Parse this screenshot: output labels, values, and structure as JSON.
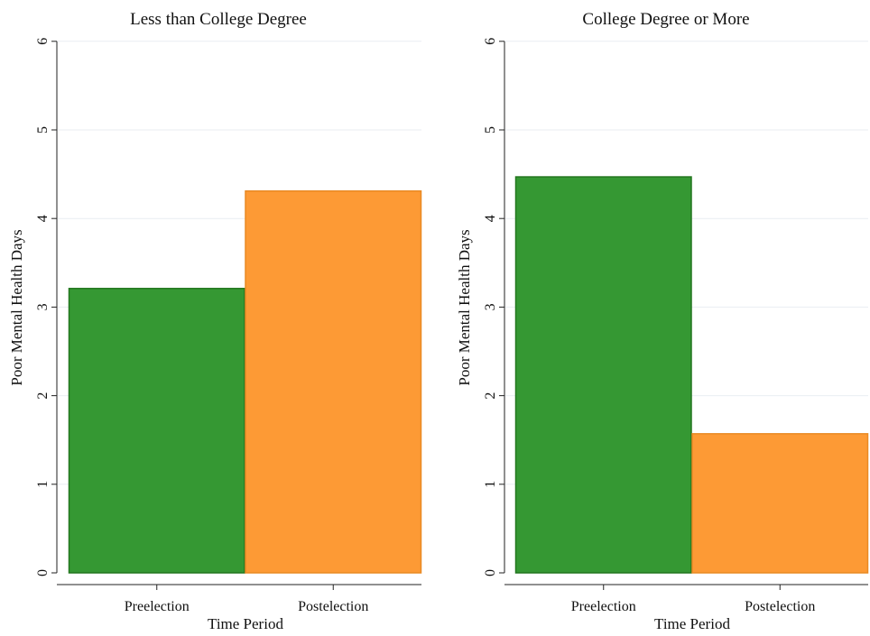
{
  "chart_data": [
    {
      "type": "bar",
      "title": "Less than College Degree",
      "xlabel": "Time Period",
      "ylabel": "Poor Mental Health Days",
      "categories": [
        "Preelection",
        "Postelection"
      ],
      "values": [
        3.21,
        4.31
      ],
      "colors": [
        "#359833",
        "#fd9a35"
      ],
      "ylim": [
        0,
        6
      ],
      "yticks": [
        0,
        1,
        2,
        3,
        4,
        5,
        6
      ],
      "grid": true,
      "legend": "none"
    },
    {
      "type": "bar",
      "title": "College Degree or More",
      "xlabel": "Time Period",
      "ylabel": "Poor Mental Health Days",
      "categories": [
        "Preelection",
        "Postelection"
      ],
      "values": [
        4.47,
        1.57
      ],
      "colors": [
        "#359833",
        "#fd9a35"
      ],
      "ylim": [
        0,
        6
      ],
      "yticks": [
        0,
        1,
        2,
        3,
        4,
        5,
        6
      ],
      "grid": true,
      "legend": "none"
    }
  ]
}
